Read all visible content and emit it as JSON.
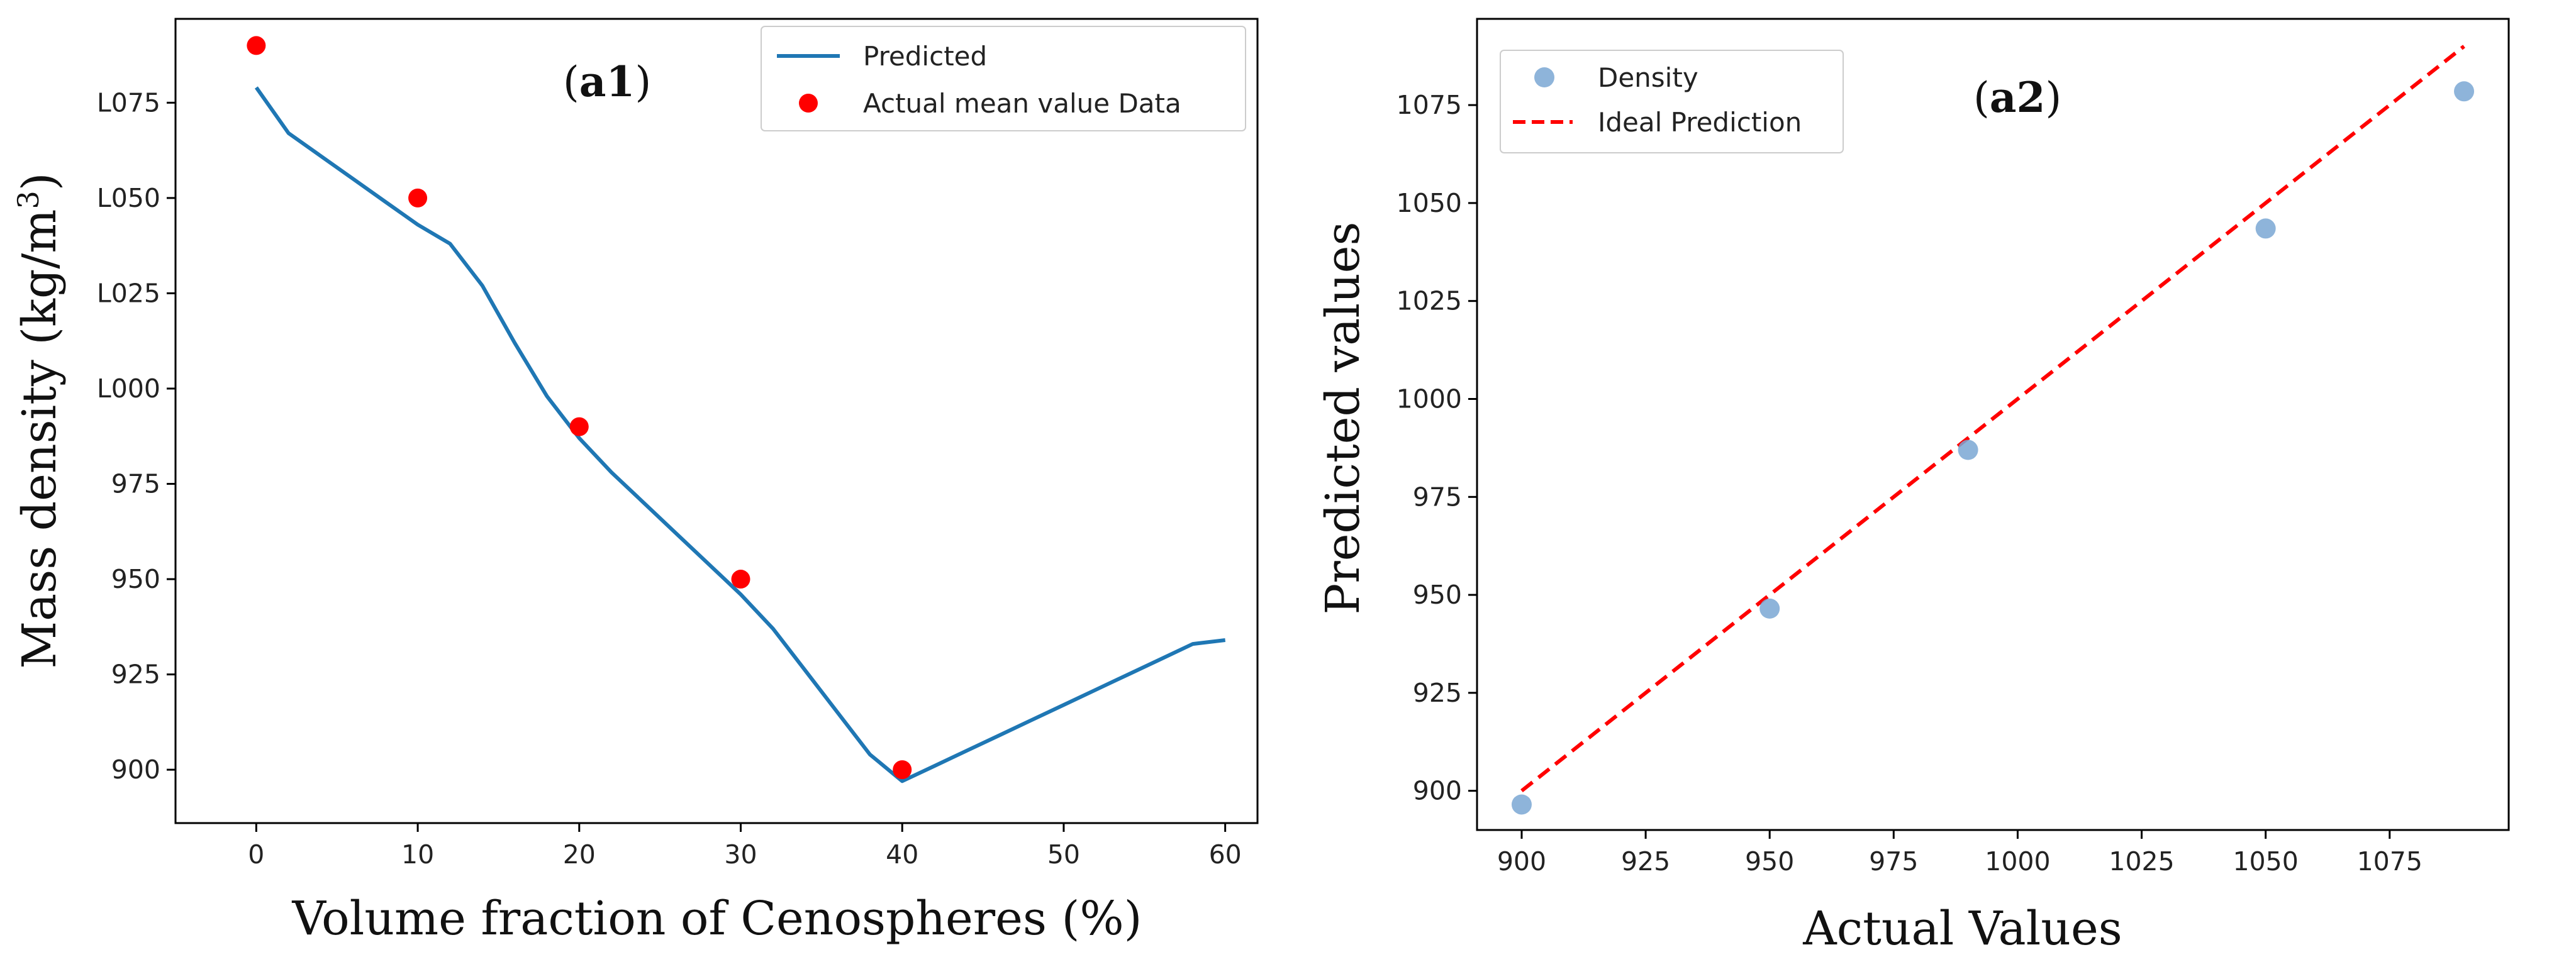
{
  "chart_data": [
    {
      "type": "line",
      "panel_label": "a1",
      "title": "",
      "xlabel": "Volume fraction of Cenospheres (%)",
      "ylabel": "Mass density (kg/m³)",
      "ylabel_main": "Mass density (kg/m",
      "ylabel_sup": "3",
      "ylabel_close": ")",
      "xlim": [
        -5,
        62
      ],
      "ylim": [
        886,
        1097
      ],
      "xticks": [
        0,
        10,
        20,
        30,
        40,
        50,
        60
      ],
      "yticks": [
        900,
        925,
        950,
        975,
        1000,
        1025,
        1050,
        1075
      ],
      "ytick_labels": [
        "900",
        "925",
        "950",
        "975",
        "L000",
        "L025",
        "L050",
        "L075"
      ],
      "legend_position": "top-right",
      "colors": {
        "line": "#1f77b4",
        "points": "#ff0000"
      },
      "series": [
        {
          "name": "Predicted",
          "kind": "line",
          "x": [
            0,
            2,
            4,
            6,
            8,
            10,
            12,
            14,
            16,
            18,
            20,
            22,
            24,
            26,
            28,
            30,
            32,
            34,
            36,
            38,
            40,
            42,
            44,
            46,
            48,
            50,
            52,
            54,
            56,
            58,
            60
          ],
          "y": [
            1079,
            1067,
            1061,
            1055,
            1049,
            1043,
            1038,
            1027,
            1012,
            998,
            987,
            978,
            970,
            962,
            954,
            946,
            937,
            926,
            915,
            904,
            897,
            901,
            905,
            909,
            913,
            917,
            921,
            925,
            929,
            933,
            934
          ]
        },
        {
          "name": "Actual mean value Data",
          "kind": "scatter",
          "x": [
            0,
            10,
            20,
            30,
            40
          ],
          "y": [
            1090,
            1050,
            990,
            950,
            900
          ]
        }
      ]
    },
    {
      "type": "scatter",
      "panel_label": "a2",
      "title": "",
      "xlabel": "Actual Values",
      "ylabel": "Predicted values",
      "xlim": [
        891,
        1099
      ],
      "ylim": [
        890,
        1097
      ],
      "xticks": [
        900,
        925,
        950,
        975,
        1000,
        1025,
        1050,
        1075
      ],
      "yticks": [
        900,
        925,
        950,
        975,
        1000,
        1025,
        1050,
        1075
      ],
      "legend_position": "top-left",
      "colors": {
        "points": "#7aa7d4",
        "ideal": "#ff0000"
      },
      "series": [
        {
          "name": "Density",
          "kind": "scatter",
          "x": [
            900,
            950,
            990,
            1050,
            1090
          ],
          "y": [
            896.5,
            946.5,
            987,
            1043.5,
            1078.5
          ]
        },
        {
          "name": "Ideal Prediction",
          "kind": "dashed-line",
          "x": [
            900,
            1090
          ],
          "y": [
            900,
            1090
          ]
        }
      ]
    }
  ]
}
